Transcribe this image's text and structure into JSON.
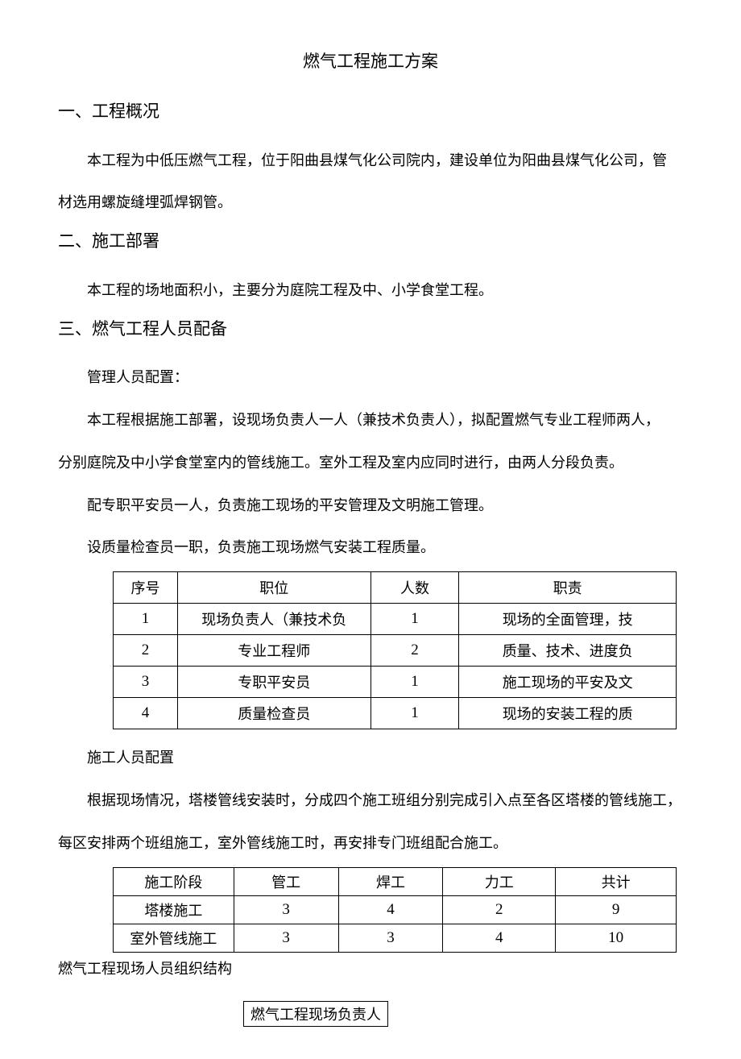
{
  "title": "燃气工程施工方案",
  "sections": {
    "s1": {
      "heading": "一、工程概况",
      "p1": "本工程为中低压燃气工程，位于阳曲县煤气化公司院内，建设单位为阳曲县煤气化公司，管",
      "p1b": "材选用螺旋缝埋弧焊钢管。"
    },
    "s2": {
      "heading": "二、施工部署",
      "p1": "本工程的场地面积小，主要分为庭院工程及中、小学食堂工程。"
    },
    "s3": {
      "heading": "三、燃气工程人员配备",
      "p1": "管理人员配置：",
      "p2": "本工程根据施工部署，设现场负责人一人（兼技术负责人），拟配置燃气专业工程师两人，",
      "p2b": "分别庭院及中小学食堂室内的管线施工。室外工程及室内应同时进行，由两人分段负责。",
      "p3": "配专职平安员一人，负责施工现场的平安管理及文明施工管理。",
      "p4": "设质量检查员一职，负责施工现场燃气安装工程质量。",
      "table1": {
        "headers": [
          "序号",
          "职位",
          "人数",
          "职责"
        ],
        "col_widths": [
          "80px",
          "240px",
          "110px",
          "270px"
        ],
        "rows": [
          [
            "1",
            "现场负责人（兼技术负",
            "1",
            "现场的全面管理，技"
          ],
          [
            "2",
            "专业工程师",
            "2",
            "质量、技术、进度负"
          ],
          [
            "3",
            "专职平安员",
            "1",
            "施工现场的平安及文"
          ],
          [
            "4",
            "质量检查员",
            "1",
            "现场的安装工程的质"
          ]
        ]
      },
      "p5": "施工人员配置",
      "p6": "根据现场情况，塔楼管线安装时，分成四个施工班组分别完成引入点至各区塔楼的管线施工，",
      "p6b": "每区安排两个班组施工，室外管线施工时，再安排专门班组配合施工。",
      "table2": {
        "headers": [
          "施工阶段",
          "管工",
          "焊工",
          "力工",
          "共计"
        ],
        "col_widths": [
          "150px",
          "130px",
          "130px",
          "140px",
          "150px"
        ],
        "rows": [
          [
            "塔楼施工",
            "3",
            "4",
            "2",
            "9"
          ],
          [
            "室外管线施工",
            "3",
            "3",
            "4",
            "10"
          ]
        ]
      },
      "p7": "燃气工程现场人员组织结构",
      "box": "燃气工程现场负责人"
    }
  }
}
